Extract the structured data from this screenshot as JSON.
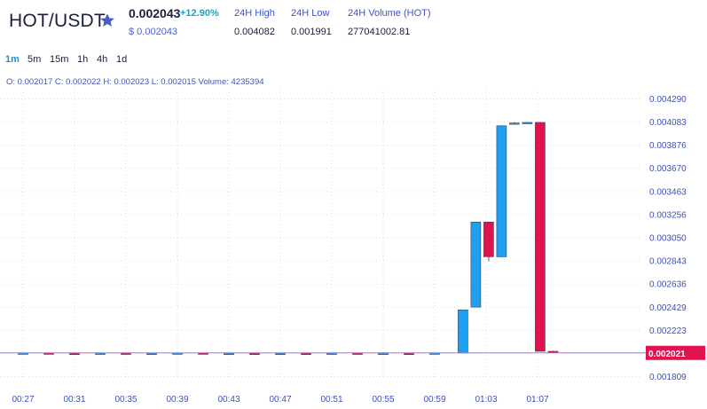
{
  "header": {
    "pair": "HOT/USDT",
    "favorite_icon": "star-icon",
    "price": "0.002043",
    "change": "+12.90%",
    "usd_price": "$ 0.002043",
    "stats": [
      {
        "label": "24H High",
        "value": "0.004082"
      },
      {
        "label": "24H Low",
        "value": "0.001991"
      },
      {
        "label": "24H Volume (HOT)",
        "value": "277041002.81"
      }
    ]
  },
  "timeframes": {
    "items": [
      "1m",
      "5m",
      "15m",
      "1h",
      "4h",
      "1d"
    ],
    "active": "1m"
  },
  "ohlc": {
    "text": "O: 0.002017  C: 0.002022  H: 0.002023  L: 0.002015  Volume: 4235394"
  },
  "colors": {
    "up": "#1e9ff0",
    "down": "#e0124f",
    "grid": "#d8dbe8",
    "axis_text": "#3a50b8",
    "last_price_bg": "#e0124f",
    "last_price_line": "#b66be0"
  },
  "chart_data": {
    "type": "candlestick",
    "x_ticks": [
      "00:27",
      "00:31",
      "00:35",
      "00:39",
      "00:43",
      "00:47",
      "00:51",
      "00:55",
      "00:59",
      "01:03",
      "01:07"
    ],
    "y_ticks": [
      "0.004290",
      "0.004083",
      "0.003876",
      "0.003670",
      "0.003463",
      "0.003256",
      "0.003050",
      "0.002843",
      "0.002636",
      "0.002429",
      "0.002223",
      "0.001809"
    ],
    "ylim": [
      0.00175,
      0.00435
    ],
    "last_price": "0.002021",
    "grid": true,
    "candles": [
      {
        "t": 0.0,
        "o": 0.002018,
        "h": 0.002022,
        "l": 0.002014,
        "c": 0.00202
      },
      {
        "t": 0.5,
        "o": 0.00202,
        "h": 0.002023,
        "l": 0.002016,
        "c": 0.002018
      },
      {
        "t": 1.0,
        "o": 0.002018,
        "h": 0.002021,
        "l": 0.002015,
        "c": 0.002017
      },
      {
        "t": 1.5,
        "o": 0.002017,
        "h": 0.00202,
        "l": 0.002014,
        "c": 0.002019
      },
      {
        "t": 2.0,
        "o": 0.002019,
        "h": 0.002022,
        "l": 0.002016,
        "c": 0.002016
      },
      {
        "t": 2.5,
        "o": 0.002016,
        "h": 0.00202,
        "l": 0.002014,
        "c": 0.002018
      },
      {
        "t": 3.0,
        "o": 0.002018,
        "h": 0.002021,
        "l": 0.002015,
        "c": 0.00202
      },
      {
        "t": 3.5,
        "o": 0.00202,
        "h": 0.002023,
        "l": 0.002017,
        "c": 0.002017
      },
      {
        "t": 4.0,
        "o": 0.002017,
        "h": 0.00202,
        "l": 0.002014,
        "c": 0.002018
      },
      {
        "t": 4.5,
        "o": 0.002018,
        "h": 0.002021,
        "l": 0.002015,
        "c": 0.002016
      },
      {
        "t": 5.0,
        "o": 0.002016,
        "h": 0.002019,
        "l": 0.002013,
        "c": 0.002018
      },
      {
        "t": 5.5,
        "o": 0.002018,
        "h": 0.002021,
        "l": 0.002015,
        "c": 0.002017
      },
      {
        "t": 6.0,
        "o": 0.002017,
        "h": 0.00202,
        "l": 0.002014,
        "c": 0.002019
      },
      {
        "t": 6.5,
        "o": 0.002019,
        "h": 0.002022,
        "l": 0.002016,
        "c": 0.002016
      },
      {
        "t": 7.0,
        "o": 0.002016,
        "h": 0.002019,
        "l": 0.002013,
        "c": 0.002018
      },
      {
        "t": 7.5,
        "o": 0.002018,
        "h": 0.002021,
        "l": 0.002015,
        "c": 0.002017
      },
      {
        "t": 8.0,
        "o": 0.002017,
        "h": 0.002021,
        "l": 0.002015,
        "c": 0.00202
      },
      {
        "t": 8.55,
        "o": 0.00202,
        "h": 0.002405,
        "l": 0.002018,
        "c": 0.002405
      },
      {
        "t": 8.8,
        "o": 0.00243,
        "h": 0.00319,
        "l": 0.00243,
        "c": 0.00319
      },
      {
        "t": 9.05,
        "o": 0.00319,
        "h": 0.00319,
        "l": 0.00284,
        "c": 0.00288
      },
      {
        "t": 9.3,
        "o": 0.00288,
        "h": 0.00405,
        "l": 0.00288,
        "c": 0.00405
      },
      {
        "t": 9.55,
        "o": 0.004065,
        "h": 0.004082,
        "l": 0.00406,
        "c": 0.004075
      },
      {
        "t": 9.8,
        "o": 0.004075,
        "h": 0.004082,
        "l": 0.00407,
        "c": 0.00408
      },
      {
        "t": 10.05,
        "o": 0.00408,
        "h": 0.004082,
        "l": 0.002035,
        "c": 0.002035
      },
      {
        "t": 10.3,
        "o": 0.002035,
        "h": 0.00204,
        "l": 0.002018,
        "c": 0.002022
      }
    ]
  }
}
